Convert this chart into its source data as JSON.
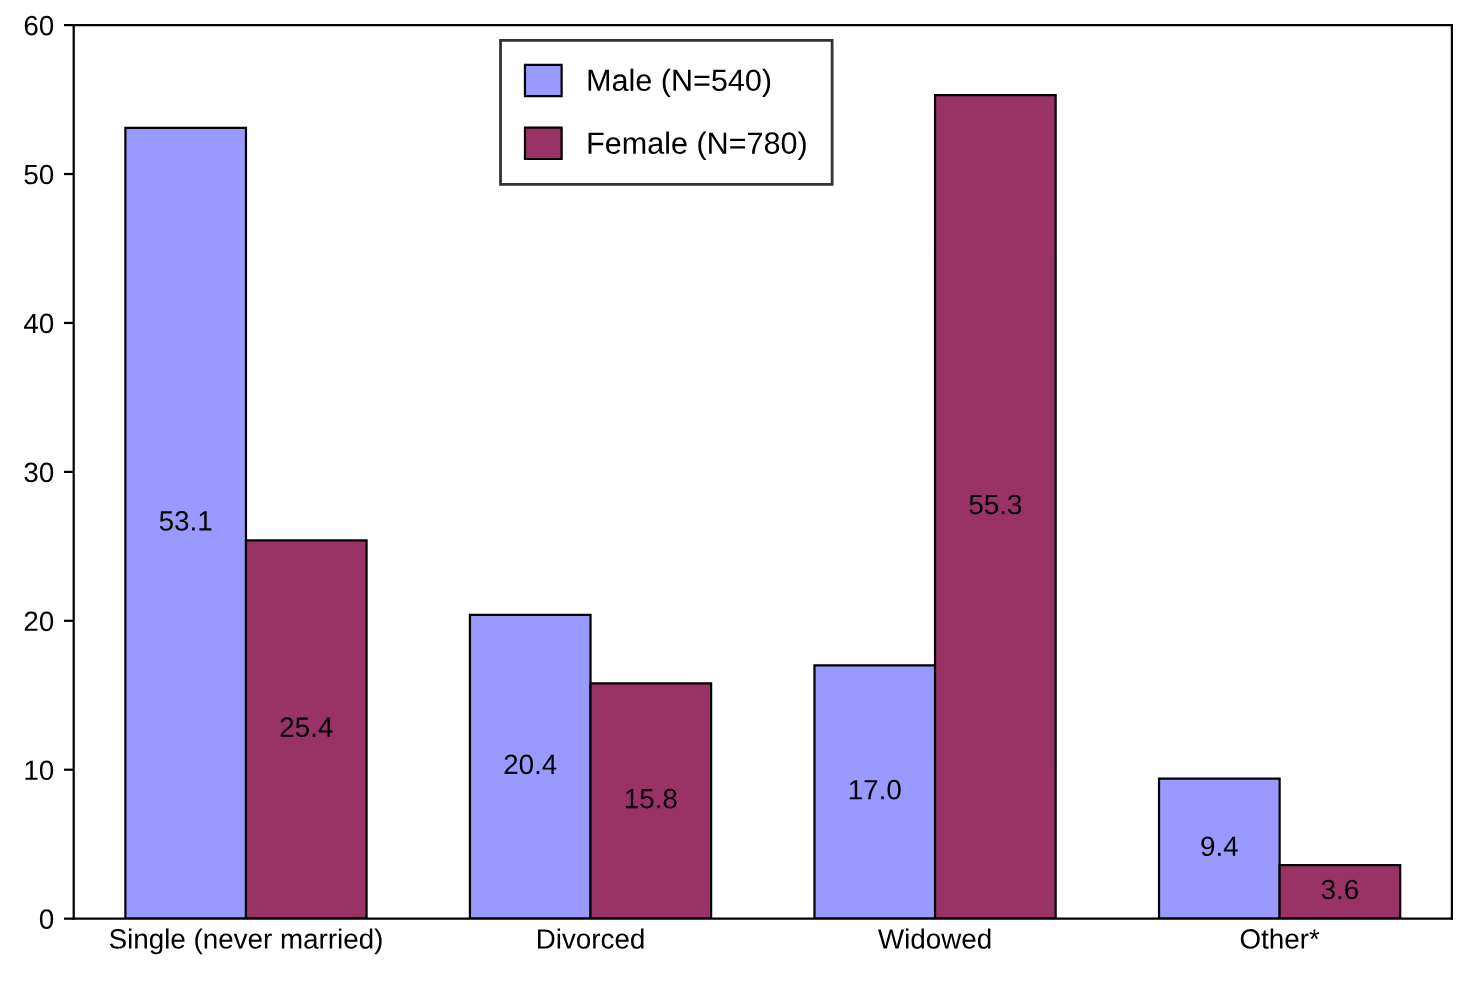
{
  "chart_data": {
    "type": "bar",
    "categories": [
      "Single (never married)",
      "Divorced",
      "Widowed",
      "Other*"
    ],
    "series": [
      {
        "name": "Male (N=540)",
        "color": "#9999ff",
        "values": [
          53.1,
          20.4,
          17.0,
          9.4
        ],
        "value_labels": [
          "53.1",
          "20.4",
          "17.0",
          "9.4"
        ]
      },
      {
        "name": "Female (N=780)",
        "color": "#993366",
        "values": [
          25.4,
          15.8,
          55.3,
          3.6
        ],
        "value_labels": [
          "25.4",
          "15.8",
          "55.3",
          "3.6"
        ]
      }
    ],
    "ylim": [
      0,
      60
    ],
    "yticks": [
      0,
      10,
      20,
      30,
      40,
      50,
      60
    ],
    "grid": false,
    "legend": "top"
  }
}
